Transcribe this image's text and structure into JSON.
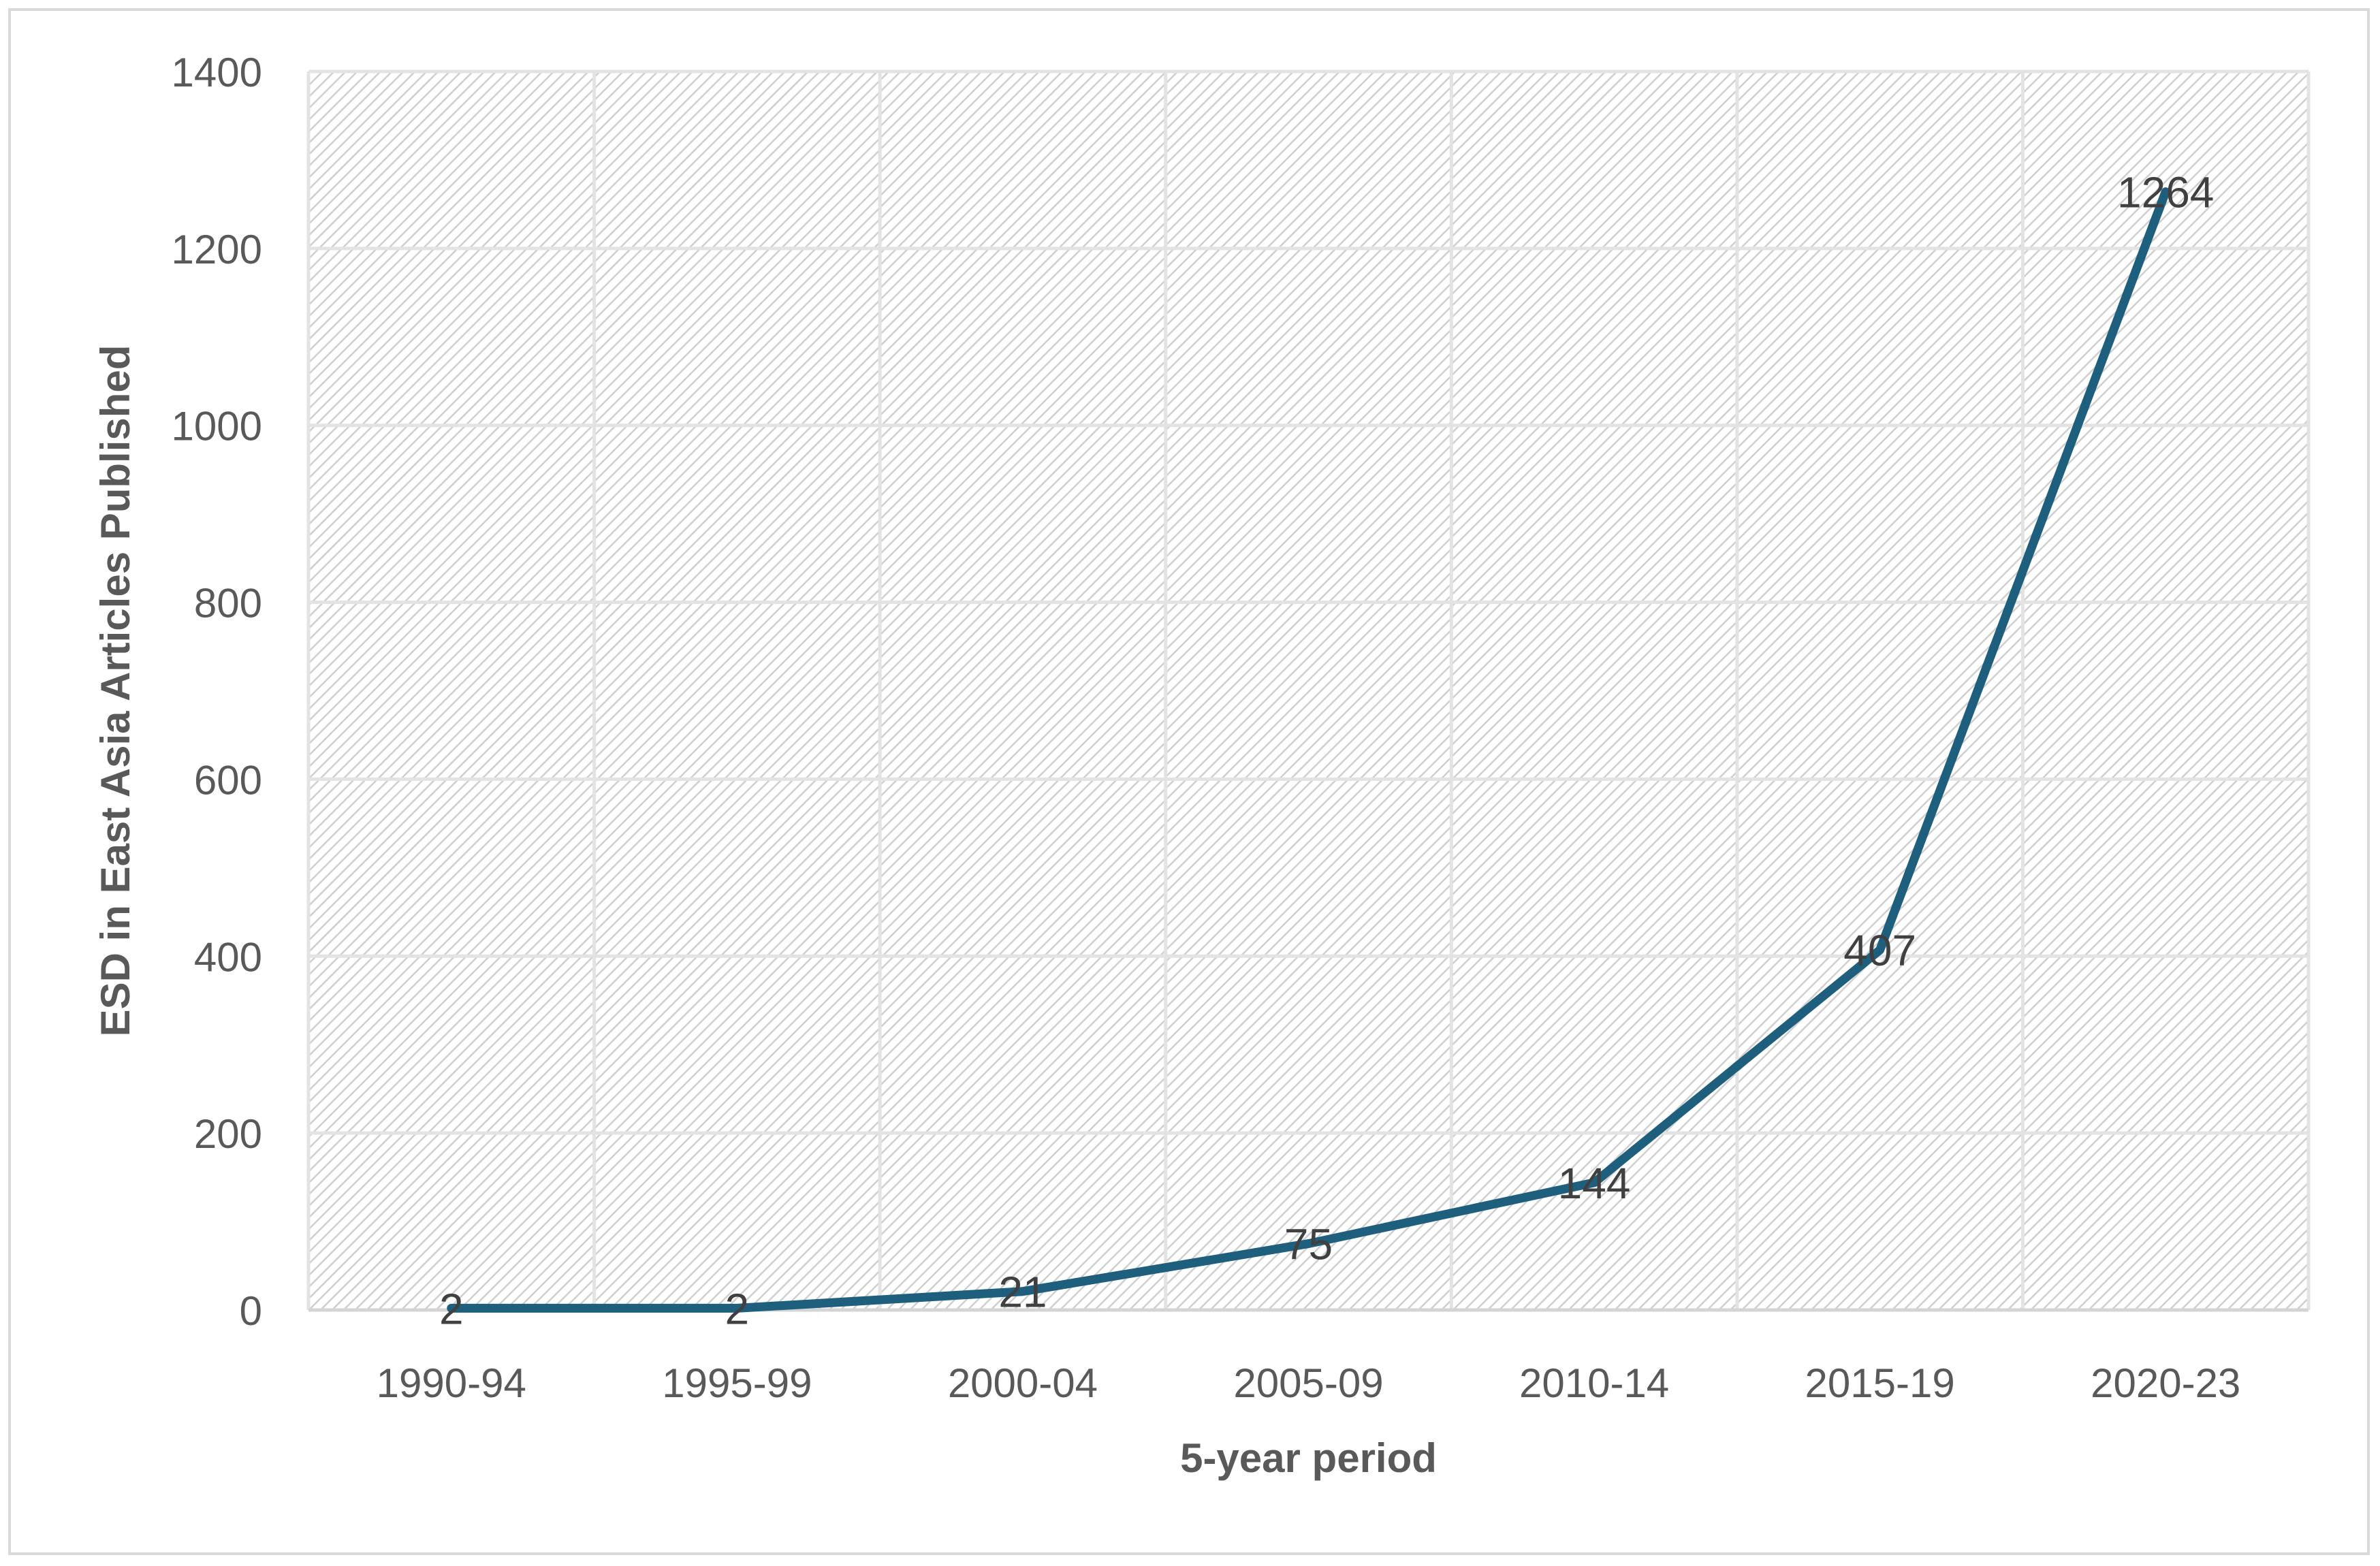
{
  "chart_data": {
    "type": "line",
    "title": "",
    "xlabel": "5-year period",
    "ylabel": "ESD in East Asia Articles Published",
    "categories": [
      "1990-94",
      "1995-99",
      "2000-04",
      "2005-09",
      "2010-14",
      "2015-19",
      "2020-23"
    ],
    "series": [
      {
        "values": [
          2,
          2,
          21,
          75,
          144,
          407,
          1264
        ],
        "color": "#1f5f7e"
      }
    ],
    "ylim": [
      0,
      1400
    ],
    "yticks": [
      "0",
      "200",
      "400",
      "600",
      "800",
      "1000",
      "1200",
      "1400"
    ],
    "data_labels": [
      "2",
      "2",
      "21",
      "75",
      "144",
      "407",
      "1264"
    ],
    "grid": true,
    "plot_area_pattern": "diagonal-hatch",
    "legend": "none"
  }
}
